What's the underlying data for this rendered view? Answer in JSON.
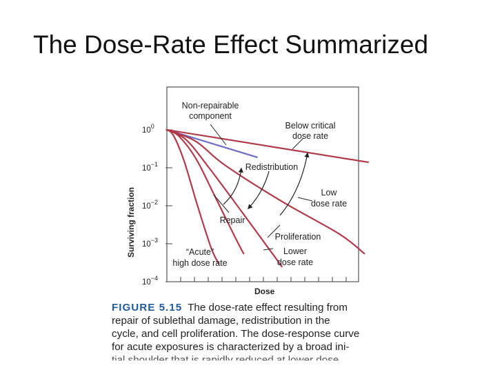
{
  "slide": {
    "title": "The Dose-Rate Effect Summarized"
  },
  "figure": {
    "label": "FIGURE 5.15",
    "caption_lines": [
      "The dose-rate effect resulting from",
      "repair of sublethal damage, redistribution in the",
      "cycle, and cell proliferation. The dose-response curve",
      "for acute exposures is characterized by a broad ini-",
      "tial shoulder that is rapidly reduced at lower dose"
    ]
  },
  "chart_data": {
    "type": "line",
    "xlabel": "Dose",
    "ylabel": "Surviving fraction",
    "yscale": "log",
    "ylim": [
      0.0001,
      1
    ],
    "xlim": [
      0,
      10
    ],
    "ytick_labels": [
      {
        "base": "10",
        "exp": "0",
        "value": 1
      },
      {
        "base": "10",
        "exp": "−1",
        "value": 0.1
      },
      {
        "base": "10",
        "exp": "−2",
        "value": 0.01
      },
      {
        "base": "10",
        "exp": "−3",
        "value": 0.001
      },
      {
        "base": "10",
        "exp": "−4",
        "value": 0.0001
      }
    ],
    "series": [
      {
        "key": "nonrep",
        "color": "#6b6bc8",
        "points": [
          [
            0,
            1
          ],
          [
            4.7,
            0.19
          ]
        ]
      },
      {
        "key": "below",
        "color": "#b03a4a",
        "points": [
          [
            0,
            1
          ],
          [
            10.5,
            0.14
          ]
        ]
      },
      {
        "key": "low",
        "color": "#b03a4a",
        "points": [
          [
            0,
            1
          ],
          [
            1.5,
            0.5
          ],
          [
            3.0,
            0.12
          ],
          [
            6,
            0.013
          ],
          [
            9.0,
            0.0018
          ],
          [
            10.3,
            0.00055
          ]
        ]
      },
      {
        "key": "lower",
        "color": "#b03a4a",
        "points": [
          [
            0,
            1
          ],
          [
            1.0,
            0.55
          ],
          [
            2.2,
            0.1
          ],
          [
            4.0,
            0.006
          ],
          [
            6.0,
            0.00025
          ]
        ]
      },
      {
        "key": "repair",
        "color": "#b03a4a",
        "points": [
          [
            0,
            1
          ],
          [
            0.6,
            0.7
          ],
          [
            1.5,
            0.18
          ],
          [
            2.5,
            0.018
          ],
          [
            3.5,
            0.0017
          ],
          [
            4.0,
            0.00055
          ]
        ]
      },
      {
        "key": "acute",
        "color": "#b03a4a",
        "points": [
          [
            0,
            1
          ],
          [
            0.35,
            0.7
          ],
          [
            0.9,
            0.15
          ],
          [
            1.6,
            0.01
          ],
          [
            2.3,
            0.0008
          ],
          [
            2.7,
            0.0003
          ]
        ]
      }
    ],
    "annotations": {
      "nonrep": [
        "Non-repairable",
        "component"
      ],
      "below": [
        "Below critical",
        "dose rate"
      ],
      "redistribution": "Redistribution",
      "low": [
        "Low",
        "dose rate"
      ],
      "repair": "Repair",
      "proliferation": "Proliferation",
      "acute": [
        "“Acute”",
        "high dose rate"
      ],
      "lower": [
        "Lower",
        "dose rate"
      ]
    }
  }
}
